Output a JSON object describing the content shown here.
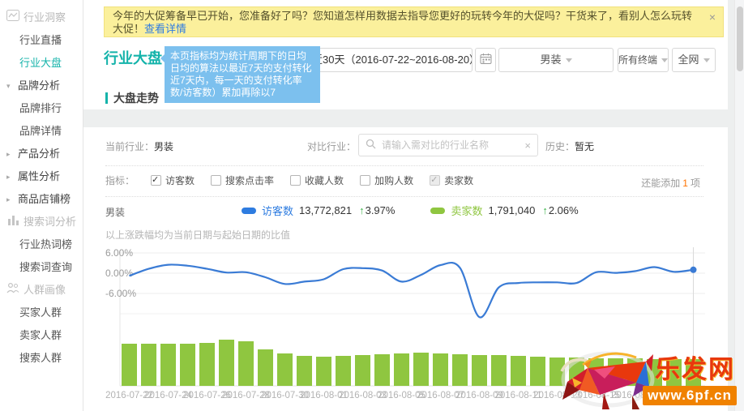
{
  "colors": {
    "accent_teal": "#14b3aa",
    "line_blue": "#3a7bd5",
    "bar_green": "#8fc640",
    "link_blue": "#2f7ce2",
    "banner_bg": "#fbf09c",
    "up_green": "#3cb54a",
    "count_orange": "#ff7300",
    "tooltip_bg": "#7cc0ee"
  },
  "sidebar": {
    "sections": [
      {
        "label": "行业洞察",
        "icon": "line-chart-icon",
        "items": [
          {
            "label": "行业直播",
            "active": false
          },
          {
            "label": "行业大盘",
            "active": true
          }
        ]
      },
      {
        "label": "品牌分析",
        "arrow": "down",
        "items": [
          {
            "label": "品牌排行",
            "active": false
          },
          {
            "label": "品牌详情",
            "active": false
          }
        ]
      },
      {
        "label": "产品分析",
        "arrow": "right",
        "items": []
      },
      {
        "label": "属性分析",
        "arrow": "right",
        "items": []
      },
      {
        "label": "商品店铺榜",
        "arrow": "right",
        "items": []
      },
      {
        "label": "搜索词分析",
        "icon": "bar-chart-icon",
        "items": [
          {
            "label": "行业热词榜",
            "active": false
          },
          {
            "label": "搜索词查询",
            "active": false
          }
        ]
      },
      {
        "label": "人群画像",
        "icon": "people-icon",
        "items": [
          {
            "label": "买家人群",
            "active": false
          },
          {
            "label": "卖家人群",
            "active": false
          },
          {
            "label": "搜索人群",
            "active": false
          }
        ]
      }
    ]
  },
  "banner": {
    "text": "今年的大促筹备早已开始，您准备好了吗？您知道怎样用数据去指导您更好的玩转今年的大促吗？干货来了，看别人怎么玩转大促！",
    "link_label": "查看详情",
    "close_label": "×"
  },
  "header": {
    "title": "行业大盘",
    "tooltip_lines": [
      "本页指标均为统计周期下的日均",
      "日均的算法以最近7天的支付转化",
      "近7天内，每一天的支付转化率",
      "数/访客数）累加再除以7"
    ],
    "date_range": "近30天（2016-07-22~2016-08-20）",
    "dropdowns": [
      {
        "label": "男装"
      },
      {
        "label": "所有终端"
      },
      {
        "label": "全网"
      }
    ]
  },
  "trend_section": {
    "title": "大盘走势",
    "filter_row": {
      "current_label": "当前行业：",
      "current_value": "男装",
      "compare_label": "对比行业：",
      "compare_placeholder": "请输入需对比的行业名称",
      "compare_value": "",
      "clear_label": "×",
      "history_label": "历史：",
      "history_value": "暂无"
    },
    "metrics": {
      "label": "指标：",
      "items": [
        {
          "label": "访客数",
          "checked": true,
          "disabled": false
        },
        {
          "label": "搜索点击率",
          "checked": false,
          "disabled": false
        },
        {
          "label": "收藏人数",
          "checked": false,
          "disabled": false
        },
        {
          "label": "加购人数",
          "checked": false,
          "disabled": false
        },
        {
          "label": "卖家数",
          "checked": true,
          "disabled": true
        }
      ],
      "remaining_prefix": "还能添加",
      "remaining_count": "1",
      "remaining_suffix": "项"
    },
    "series_row": {
      "industry": "男装",
      "series": [
        {
          "name": "访客数",
          "value": "13,772,821",
          "change": "3.97%",
          "direction": "up",
          "color": "#2e7ce0"
        },
        {
          "name": "卖家数",
          "value": "1,791,040",
          "change": "2.06%",
          "direction": "up",
          "color": "#8fc640"
        }
      ]
    },
    "note": "以上涨跌幅均为当前日期与起始日期的比值"
  },
  "chart_data": {
    "type": "line+bar",
    "title": "大盘走势",
    "x": [
      "2016-07-22",
      "2016-07-23",
      "2016-07-24",
      "2016-07-25",
      "2016-07-26",
      "2016-07-27",
      "2016-07-28",
      "2016-07-29",
      "2016-07-30",
      "2016-07-31",
      "2016-08-01",
      "2016-08-02",
      "2016-08-03",
      "2016-08-04",
      "2016-08-05",
      "2016-08-06",
      "2016-08-07",
      "2016-08-08",
      "2016-08-09",
      "2016-08-10",
      "2016-08-11",
      "2016-08-12",
      "2016-08-13",
      "2016-08-14",
      "2016-08-15",
      "2016-08-16",
      "2016-08-17",
      "2016-08-18",
      "2016-08-19",
      "2016-08-20"
    ],
    "x_tick_labels": [
      "2016-07-22",
      "2016-07-24",
      "2016-07-26",
      "2016-07-28",
      "2016-07-30",
      "2016-08-01",
      "2016-08-03",
      "2016-08-05",
      "2016-08-07",
      "2016-08-09",
      "2016-08-11",
      "2016-08-13",
      "2016-08-15",
      "2016-08-17",
      "2016-08-19"
    ],
    "yaxis": {
      "ticks": [
        "6.00%",
        "0.00%",
        "-6.00%"
      ],
      "tick_values": [
        6,
        0,
        -6
      ],
      "unit": "%"
    },
    "series": [
      {
        "name": "访客数",
        "type": "line",
        "unit": "%",
        "color": "#3a7bd5",
        "values": [
          -0.8,
          1.3,
          2.5,
          2.2,
          1.3,
          0.2,
          0.3,
          -1.2,
          -3.2,
          -2.5,
          -1.8,
          1.2,
          1.5,
          0.8,
          -2.5,
          -0.5,
          2.4,
          1.6,
          -13.0,
          -4.2,
          -2.9,
          -2.7,
          -2.7,
          -2.9,
          0.3,
          0.1,
          0.6,
          1.8,
          0.4,
          1.0
        ]
      },
      {
        "name": "卖家数",
        "type": "bar",
        "unit": "relative",
        "color": "#8fc640",
        "values": [
          52,
          52,
          52,
          52,
          53,
          57,
          55,
          45,
          40,
          37,
          36,
          37,
          38,
          39,
          40,
          41,
          40,
          39,
          38,
          38,
          37,
          36,
          35,
          35,
          34,
          34,
          34,
          33,
          33,
          33
        ]
      }
    ],
    "legend_position": "top",
    "grid": true,
    "end_point_marker": true
  },
  "watermark": {
    "site": "乐发网",
    "url": "www.6pf.cn"
  }
}
